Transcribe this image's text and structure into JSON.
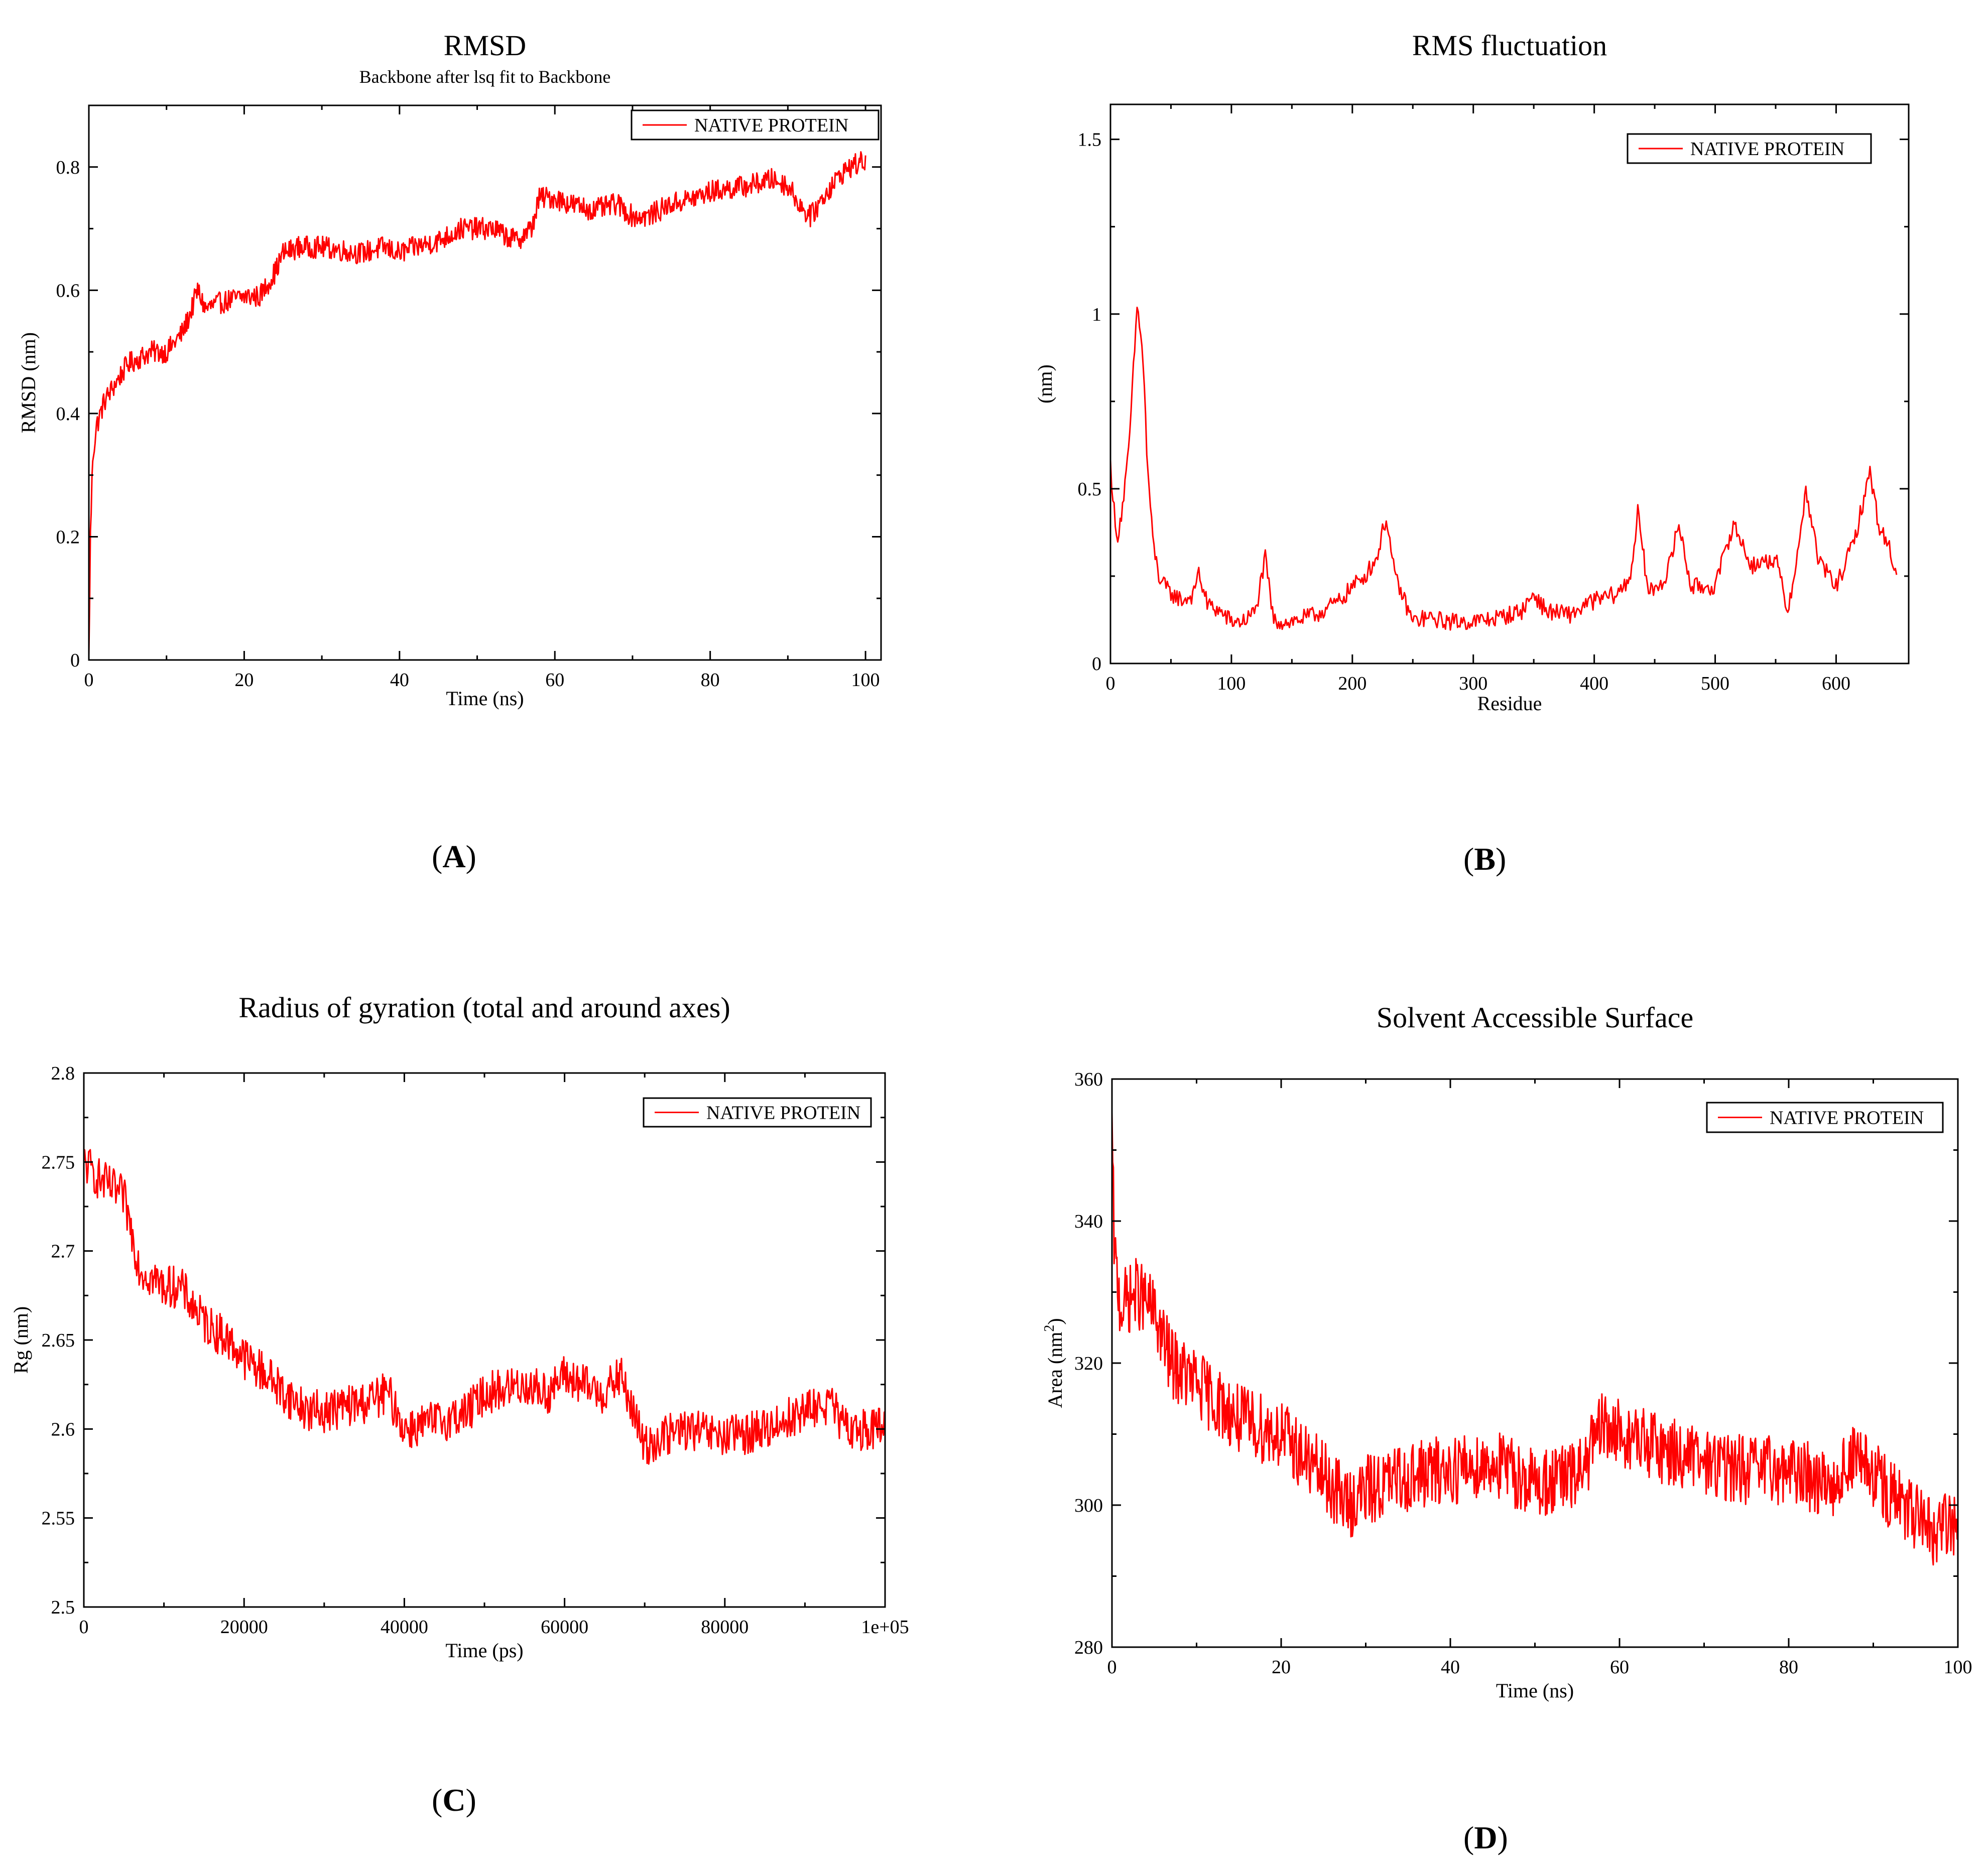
{
  "panel_labels": [
    {
      "open": "(",
      "letter": "A",
      "close": ")"
    },
    {
      "open": "(",
      "letter": "B",
      "close": ")"
    },
    {
      "open": "(",
      "letter": "C",
      "close": ")"
    },
    {
      "open": "(",
      "letter": "D",
      "close": ")"
    }
  ],
  "colors": {
    "series": "#ff0000",
    "axis": "#000000",
    "background": "#ffffff"
  },
  "chart_data": [
    {
      "type": "line",
      "title": "RMSD",
      "subtitle": "Backbone after lsq fit to Backbone",
      "xlabel": "Time (ns)",
      "ylabel": "RMSD (nm)",
      "xlim": [
        0,
        102
      ],
      "ylim": [
        0,
        0.9
      ],
      "xticks": [
        0,
        20,
        40,
        60,
        80,
        100
      ],
      "xtick_labels": [
        "0",
        "20",
        "40",
        "60",
        "80",
        "100"
      ],
      "yticks": [
        0,
        0.2,
        0.4,
        0.6,
        0.8
      ],
      "ytick_labels": [
        "0",
        "0.2",
        "0.4",
        "0.6",
        "0.8"
      ],
      "legend": "NATIVE PROTEIN",
      "legend_position": "top-right",
      "series": [
        {
          "name": "NATIVE PROTEIN",
          "noise": 0.018,
          "n": 1000,
          "x": [
            0,
            0.2,
            0.5,
            1,
            2,
            3,
            5,
            8,
            10,
            12,
            13,
            14,
            15,
            17,
            20,
            22,
            24,
            25,
            27,
            30,
            35,
            38,
            40,
            42,
            45,
            48,
            50,
            52,
            55,
            57,
            58,
            60,
            62,
            65,
            68,
            70,
            72,
            75,
            78,
            80,
            85,
            88,
            90,
            92,
            93,
            95,
            97,
            98,
            100
          ],
          "y": [
            0,
            0.2,
            0.33,
            0.38,
            0.42,
            0.44,
            0.48,
            0.5,
            0.5,
            0.53,
            0.56,
            0.6,
            0.57,
            0.58,
            0.59,
            0.59,
            0.63,
            0.66,
            0.67,
            0.67,
            0.66,
            0.67,
            0.66,
            0.67,
            0.68,
            0.7,
            0.7,
            0.7,
            0.68,
            0.7,
            0.75,
            0.75,
            0.74,
            0.73,
            0.74,
            0.72,
            0.72,
            0.74,
            0.75,
            0.76,
            0.77,
            0.78,
            0.77,
            0.73,
            0.72,
            0.76,
            0.79,
            0.8,
            0.81
          ]
        }
      ]
    },
    {
      "type": "line",
      "title": "RMS fluctuation",
      "xlabel": "Residue",
      "ylabel": "(nm)",
      "xlim": [
        0,
        660
      ],
      "ylim": [
        0,
        1.6
      ],
      "xticks": [
        0,
        100,
        200,
        300,
        400,
        500,
        600
      ],
      "xtick_labels": [
        "0",
        "100",
        "200",
        "300",
        "400",
        "500",
        "600"
      ],
      "yticks": [
        0,
        0.5,
        1,
        1.5
      ],
      "ytick_labels": [
        "0",
        "0.5",
        "1",
        "1.5"
      ],
      "legend": "NATIVE PROTEIN",
      "legend_position": "top-right",
      "series": [
        {
          "name": "NATIVE PROTEIN",
          "noise": 0.025,
          "n": 650,
          "x": [
            0,
            5,
            10,
            15,
            20,
            22,
            25,
            28,
            30,
            33,
            35,
            40,
            45,
            50,
            60,
            70,
            72,
            80,
            90,
            100,
            110,
            120,
            128,
            135,
            150,
            170,
            190,
            200,
            210,
            220,
            228,
            235,
            250,
            260,
            280,
            300,
            320,
            340,
            350,
            360,
            380,
            400,
            420,
            430,
            436,
            445,
            460,
            470,
            480,
            500,
            515,
            530,
            550,
            560,
            570,
            575,
            585,
            600,
            615,
            628,
            635,
            645,
            650
          ],
          "x_note": "residue",
          "y": [
            0.57,
            0.35,
            0.45,
            0.6,
            0.9,
            1.02,
            0.95,
            0.8,
            0.6,
            0.45,
            0.35,
            0.25,
            0.22,
            0.2,
            0.18,
            0.2,
            0.27,
            0.17,
            0.15,
            0.12,
            0.12,
            0.15,
            0.3,
            0.12,
            0.12,
            0.14,
            0.18,
            0.22,
            0.25,
            0.3,
            0.42,
            0.25,
            0.12,
            0.13,
            0.12,
            0.12,
            0.13,
            0.15,
            0.2,
            0.15,
            0.14,
            0.18,
            0.2,
            0.25,
            0.43,
            0.2,
            0.25,
            0.4,
            0.22,
            0.22,
            0.4,
            0.28,
            0.3,
            0.15,
            0.35,
            0.5,
            0.3,
            0.22,
            0.35,
            0.55,
            0.4,
            0.32,
            0.25
          ]
        }
      ]
    },
    {
      "type": "line",
      "title": "Radius of gyration (total and around axes)",
      "xlabel": "Time (ps)",
      "ylabel": "Rg (nm)",
      "xlim": [
        0,
        100000
      ],
      "ylim": [
        2.5,
        2.8
      ],
      "xticks": [
        0,
        20000,
        40000,
        60000,
        80000,
        100000
      ],
      "xtick_labels": [
        "0",
        "20000",
        "40000",
        "60000",
        "80000",
        "1e+05"
      ],
      "yticks": [
        2.5,
        2.55,
        2.6,
        2.65,
        2.7,
        2.75,
        2.8
      ],
      "ytick_labels": [
        "2.5",
        "2.55",
        "2.6",
        "2.65",
        "2.7",
        "2.75",
        "2.8"
      ],
      "legend": "NATIVE PROTEIN",
      "legend_position": "top-right",
      "series": [
        {
          "name": "NATIVE PROTEIN",
          "noise": 0.012,
          "n": 1000,
          "x": [
            0,
            2000,
            5000,
            7000,
            10000,
            12000,
            15000,
            18000,
            20000,
            23000,
            25000,
            28000,
            30000,
            35000,
            38000,
            40000,
            45000,
            48000,
            50000,
            55000,
            58000,
            60000,
            62000,
            65000,
            67000,
            70000,
            72000,
            75000,
            80000,
            85000,
            90000,
            93000,
            95000,
            100000
          ],
          "y": [
            2.75,
            2.74,
            2.73,
            2.69,
            2.68,
            2.68,
            2.66,
            2.65,
            2.64,
            2.63,
            2.62,
            2.61,
            2.61,
            2.615,
            2.62,
            2.6,
            2.605,
            2.61,
            2.62,
            2.625,
            2.62,
            2.63,
            2.625,
            2.62,
            2.63,
            2.59,
            2.595,
            2.6,
            2.595,
            2.6,
            2.61,
            2.615,
            2.6,
            2.6
          ]
        }
      ]
    },
    {
      "type": "line",
      "title": "Solvent Accessible Surface",
      "xlabel": "Time (ns)",
      "ylabel": "Area (nm²)",
      "ylabel_main": "Area (nm",
      "ylabel_sup": "2",
      "ylabel_end": ")",
      "xlim": [
        0,
        100
      ],
      "ylim": [
        280,
        360
      ],
      "xticks": [
        0,
        20,
        40,
        60,
        80,
        100
      ],
      "xtick_labels": [
        "0",
        "20",
        "40",
        "60",
        "80",
        "100"
      ],
      "yticks": [
        280,
        300,
        320,
        340,
        360
      ],
      "ytick_labels": [
        "280",
        "300",
        "320",
        "340",
        "360"
      ],
      "legend": "NATIVE PROTEIN",
      "legend_position": "top-right",
      "series": [
        {
          "name": "NATIVE PROTEIN",
          "noise": 5,
          "n": 1200,
          "x": [
            0,
            0.3,
            1,
            3,
            5,
            7,
            10,
            15,
            20,
            25,
            28,
            30,
            35,
            40,
            45,
            50,
            55,
            58,
            60,
            65,
            70,
            75,
            80,
            85,
            88,
            90,
            95,
            97,
            100
          ],
          "y": [
            352,
            335,
            328,
            330,
            327,
            320,
            317,
            312,
            310,
            304,
            300,
            302,
            304,
            305,
            306,
            303,
            304,
            311,
            310,
            308,
            306,
            305,
            305,
            303,
            307,
            304,
            298,
            296,
            298
          ]
        }
      ]
    }
  ]
}
